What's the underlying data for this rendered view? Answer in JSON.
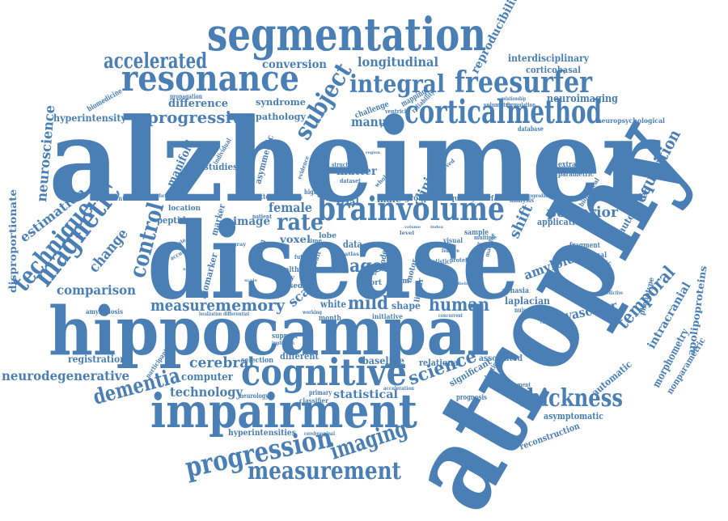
{
  "color": "#4a7fb5",
  "words": {
    "alzheimer": "alzheimer",
    "disease": "disease",
    "atrophy": "atrophy",
    "hippocampal": "hippocampal",
    "segmentation": "segmentation",
    "impairment": "impairment",
    "cognitive": "cognitive",
    "resonance": "resonance",
    "cortical": "cortical",
    "method": "method",
    "brainvolume": "brainvolume",
    "freesurfer": "freesurfer",
    "magnetic": "magnetic",
    "technique": "technique",
    "progression": "progression",
    "measurement": "measurement",
    "thickness": "thickness",
    "imaging": "imaging",
    "accelerated": "accelerated",
    "integral": "integral",
    "subject": "subject",
    "rate": "rate",
    "memory": "memory",
    "measure": "measure",
    "control": "control",
    "progressive": "progressive",
    "dementia": "dementia",
    "science": "science",
    "temporal": "temporal",
    "acquisition": "acquisition",
    "posterior": "posterior",
    "human": "human",
    "mild": "mild",
    "aged": "aged",
    "cerebral": "cerebral",
    "technology": "technology",
    "neurodegenerative": "neurodegenerative",
    "comparison": "comparison",
    "change": "change",
    "neuroscience": "neuroscience",
    "longitudinal": "longitudinal",
    "conversion": "conversion",
    "reproducibility": "reproducibility",
    "interdisciplinary": "interdisciplinary",
    "corticobasal": "corticobasal",
    "neuroimaging": "neuroimaging",
    "difference": "difference",
    "hyperintensity": "hyperintensity",
    "syndrome": "syndrome",
    "pathology": "pathology",
    "manual": "manual",
    "clinical": "clinical",
    "matter": "matter",
    "manifold": "manifold",
    "studies": "studies",
    "asymmetric": "asymmetric",
    "estimation": "estimation",
    "disproportionate": "disproportionate",
    "peptide": "peptide",
    "female": "female",
    "image": "image",
    "scan": "scan",
    "voxel": "voxel",
    "amyloid": "amyloid",
    "shift": "shift",
    "application": "application",
    "automated": "automated",
    "vascular": "vascular",
    "laplacian": "laplacian",
    "intracranial": "intracranial",
    "apolipoproteins": "apolipoproteins",
    "morphometry": "morphometry",
    "nonparametric": "nonparametric",
    "automatic": "automatic",
    "asymptomatic": "asymptomatic",
    "reconstruction": "reconstruction",
    "registration": "registration",
    "computer": "computer",
    "statistical": "statistical",
    "baseline": "baseline",
    "relational": "relational",
    "associated": "associated",
    "significant": "significant",
    "hyperintensities": "hyperintensities",
    "biomarker": "biomarker",
    "shape": "shape",
    "white": "white",
    "study": "study",
    "based": "based",
    "marker": "marker",
    "location": "location",
    "prevention": "prevention",
    "pattern": "pattern",
    "trial": "trial",
    "male": "male",
    "group": "group",
    "quality": "quality",
    "surface": "surface",
    "analysis": "analysis",
    "extraction": "extraction",
    "parametric": "parametric",
    "biological": "biological",
    "functional": "functional",
    "fragment": "fragment",
    "semantic": "semantic",
    "phenotype": "phenotype",
    "aphasia": "aphasia",
    "sample": "sample",
    "model": "model",
    "data": "data",
    "lobe": "lobe",
    "term": "term",
    "motor": "motor",
    "linear": "linear",
    "short": "short",
    "healthy": "healthy",
    "month": "month",
    "initiative": "initiative",
    "support": "support",
    "selection": "selection",
    "different": "different",
    "participant": "participant",
    "neurology": "neurology",
    "primary": "primary",
    "classifier": "classifier",
    "prognosis": "prognosis",
    "evaluation": "evaluation",
    "amyloidosis": "amyloidosis",
    "biomedicine": "biomedicine",
    "propagation": "propagation",
    "challenge": "challenge",
    "mapping": "mapping",
    "reliability": "reliability",
    "positive": "positive",
    "database": "database",
    "neuropsychological": "neuropsychological",
    "volumetric": "volumetric",
    "formulation": "formulation",
    "relationship": "relationship",
    "individual": "individual",
    "factor": "factor",
    "evidence": "evidence",
    "higher": "higher",
    "patient": "patient",
    "atlases": "atlases",
    "dataset": "dataset",
    "structural": "structural",
    "whole": "whole",
    "observed": "observed",
    "future": "future",
    "result": "result",
    "protein": "protein",
    "serial": "serial",
    "visual": "visual",
    "machine": "machine",
    "multiple": "multiple",
    "regions": "regions",
    "reproduction": "reproduction",
    "requirement": "requirement",
    "nuisance": "nuisance",
    "predictive": "predictive",
    "comparative": "comparative",
    "performance": "performance",
    "ventricle": "ventricle",
    "statistic": "statistic",
    "concurrent": "concurrent",
    "working": "working",
    "differential": "differential",
    "localization": "localization",
    "implication": "implication",
    "estimate": "estimate",
    "accuracy": "accuracy",
    "binding": "binding",
    "vector": "vector",
    "acceleration": "acceleration",
    "cerebrospinal": "cerebrospinal",
    "frequency": "frequency",
    "feature": "feature",
    "time": "time",
    "atlas": "atlas",
    "level": "level",
    "gray": "gray",
    "cross": "cross",
    "memory_small": "memory",
    "region": "region",
    "volume": "volume",
    "index": "index",
    "normal": "normal",
    "scale": "scale",
    "field": "field",
    "brain": "brain"
  }
}
